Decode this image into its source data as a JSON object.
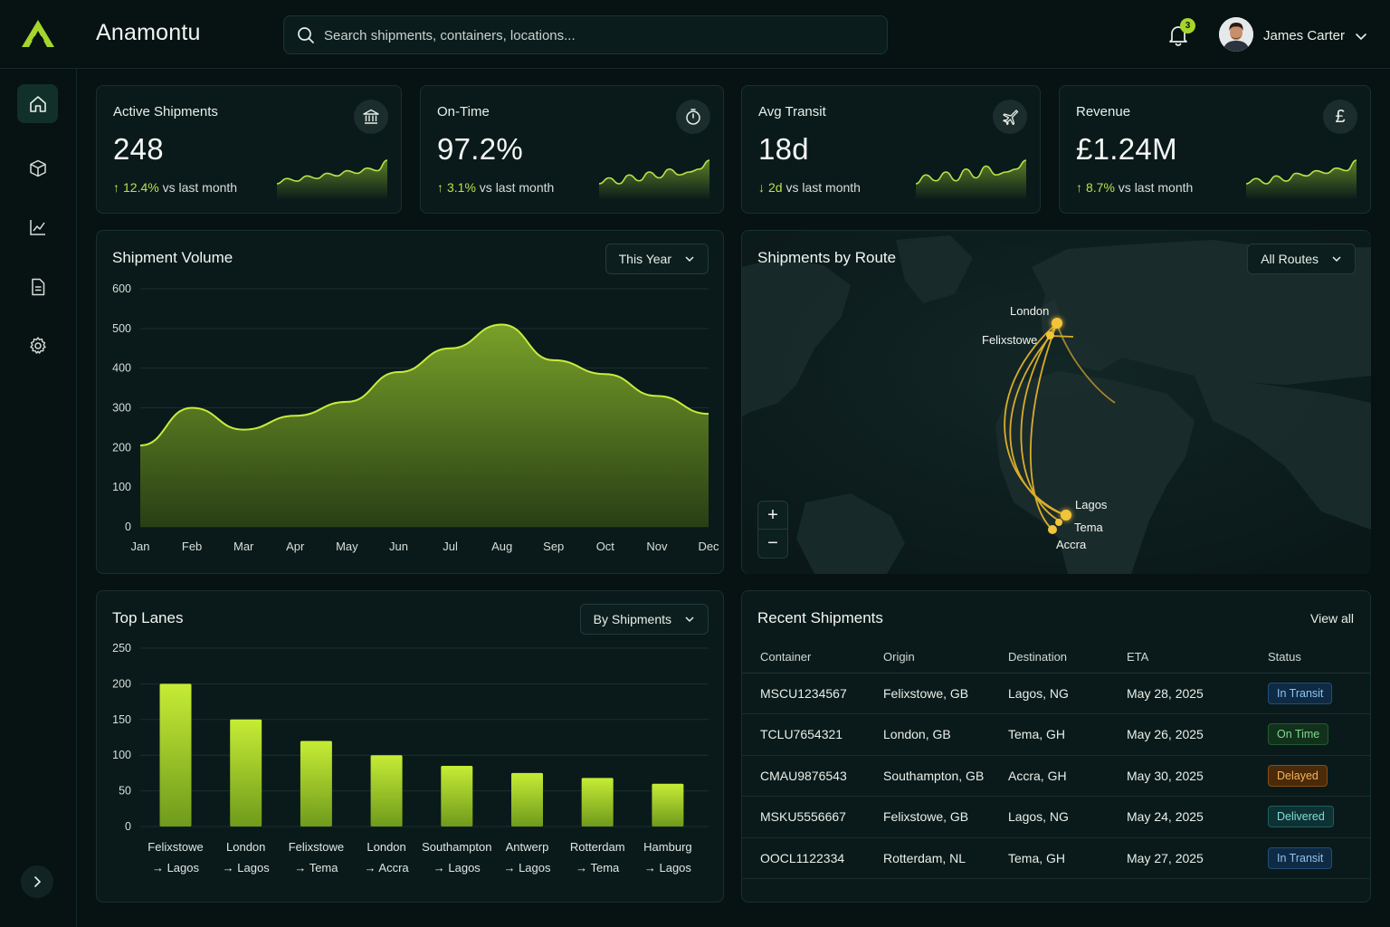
{
  "app": {
    "title": "Anamontu",
    "search_placeholder": "Search shipments, containers, locations...",
    "notifications_count": "3",
    "user_name": "James Carter"
  },
  "kpis": [
    {
      "label": "Active Shipments",
      "value": "248",
      "change": "12.4%",
      "change_suffix": "vs last month",
      "direction": "up",
      "icon": "bank-icon",
      "spark": [
        3,
        5,
        4,
        6,
        5,
        7,
        6,
        8,
        7,
        9,
        8,
        12
      ]
    },
    {
      "label": "On-Time",
      "value": "97.2%",
      "change": "3.1%",
      "change_suffix": "vs last month",
      "direction": "up",
      "icon": "timer-icon",
      "spark": [
        4,
        6,
        4,
        7,
        5,
        8,
        6,
        9,
        7,
        8,
        9,
        12
      ]
    },
    {
      "label": "Avg Transit",
      "value": "18d",
      "change": "2d",
      "change_suffix": "vs last month",
      "direction": "down",
      "icon": "plane-icon",
      "spark": [
        4,
        7,
        5,
        8,
        5,
        9,
        6,
        10,
        7,
        8,
        9,
        12
      ]
    },
    {
      "label": "Revenue",
      "value": "£1.24M",
      "change": "8.7%",
      "change_suffix": "vs last month",
      "direction": "up",
      "icon": "pound-icon",
      "icon_glyph": "£",
      "spark": [
        3,
        5,
        3,
        6,
        4,
        7,
        6,
        8,
        7,
        9,
        8,
        12
      ]
    }
  ],
  "volume": {
    "title": "Shipment Volume",
    "filter": "This Year",
    "chart_data": {
      "type": "area",
      "categories": [
        "Jan",
        "Feb",
        "Mar",
        "Apr",
        "May",
        "Jun",
        "Jul",
        "Aug",
        "Sep",
        "Oct",
        "Nov",
        "Dec"
      ],
      "values": [
        205,
        300,
        245,
        280,
        315,
        390,
        450,
        510,
        420,
        385,
        330,
        285
      ],
      "ylim": [
        0,
        600
      ],
      "yticks": [
        0,
        100,
        200,
        300,
        400,
        500,
        600
      ],
      "grid": true
    }
  },
  "routes": {
    "title": "Shipments by Route",
    "filter": "All Routes",
    "cities": [
      "London",
      "Felixstowe",
      "Lagos",
      "Tema",
      "Accra"
    ],
    "zoom_in": "+",
    "zoom_out": "−"
  },
  "lanes": {
    "title": "Top Lanes",
    "filter": "By Shipments",
    "chart_data": {
      "type": "bar",
      "categories": [
        [
          "Felixstowe",
          "→ Lagos"
        ],
        [
          "London",
          "→ Lagos"
        ],
        [
          "Felixstowe",
          "→ Tema"
        ],
        [
          "London",
          "→ Accra"
        ],
        [
          "Southampton",
          "→ Lagos"
        ],
        [
          "Antwerp",
          "→ Lagos"
        ],
        [
          "Rotterdam",
          "→ Tema"
        ],
        [
          "Hamburg",
          "→ Lagos"
        ]
      ],
      "values": [
        200,
        150,
        120,
        100,
        85,
        75,
        68,
        60
      ],
      "ylim": [
        0,
        250
      ],
      "yticks": [
        0,
        50,
        100,
        150,
        200,
        250
      ],
      "grid": true
    }
  },
  "recent": {
    "title": "Recent Shipments",
    "view_all": "View all",
    "columns": [
      "Container",
      "Origin",
      "Destination",
      "ETA",
      "Status"
    ],
    "rows": [
      {
        "container": "MSCU1234567",
        "origin": "Felixstowe, GB",
        "destination": "Lagos, NG",
        "eta": "May 28, 2025",
        "status": "In Transit",
        "status_class": "b-transit"
      },
      {
        "container": "TCLU7654321",
        "origin": "London, GB",
        "destination": "Tema, GH",
        "eta": "May 26, 2025",
        "status": "On Time",
        "status_class": "b-ontime"
      },
      {
        "container": "CMAU9876543",
        "origin": "Southampton, GB",
        "destination": "Accra, GH",
        "eta": "May 30, 2025",
        "status": "Delayed",
        "status_class": "b-delayed"
      },
      {
        "container": "MSKU5556667",
        "origin": "Felixstowe, GB",
        "destination": "Lagos, NG",
        "eta": "May 24, 2025",
        "status": "Delivered",
        "status_class": "b-delivered"
      },
      {
        "container": "OOCL1122334",
        "origin": "Rotterdam, NL",
        "destination": "Tema, GH",
        "eta": "May 27, 2025",
        "status": "In Transit",
        "status_class": "b-transit"
      }
    ]
  },
  "colors": {
    "accent": "#b8e24a",
    "bg": "#061312",
    "card": "#0a1a1a"
  }
}
